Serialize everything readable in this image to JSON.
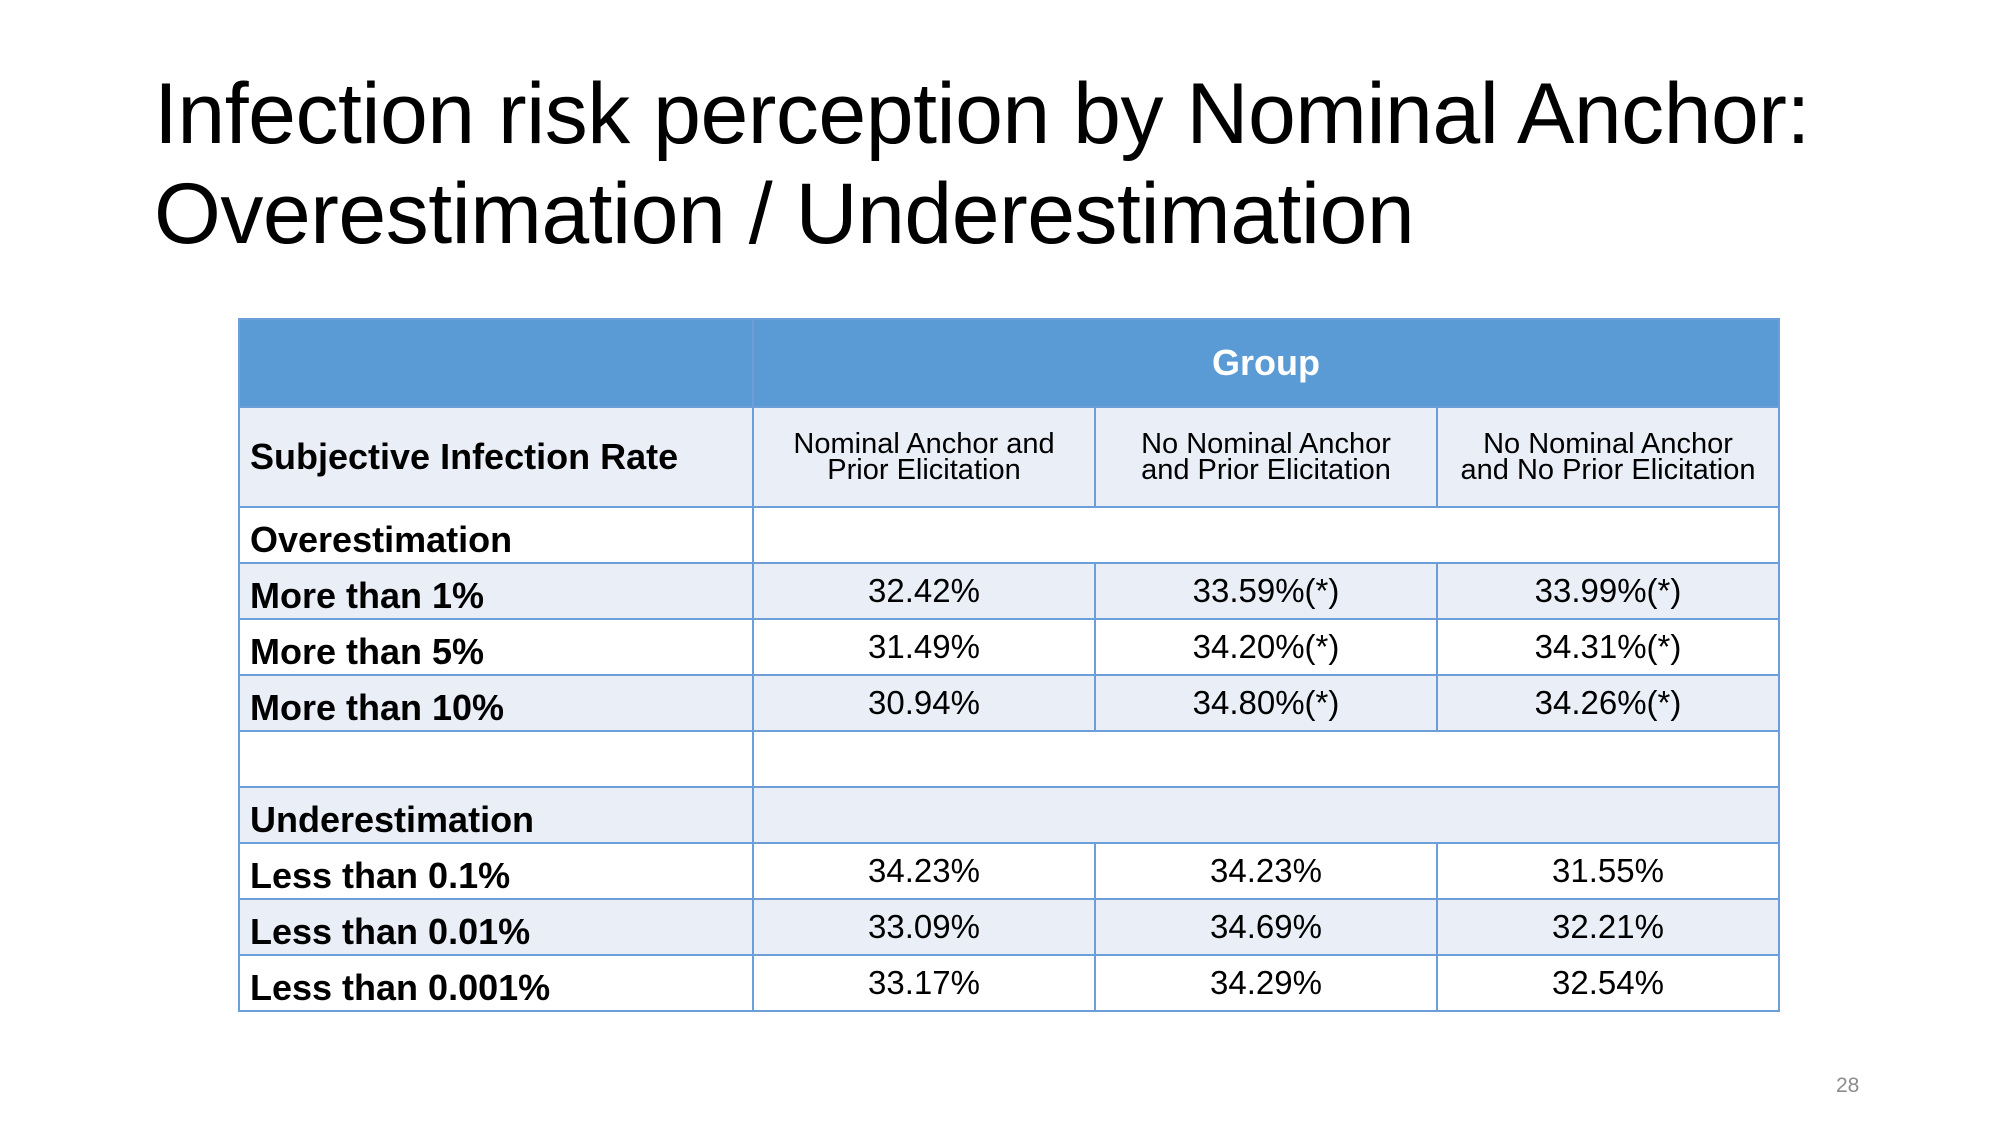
{
  "slide": {
    "title_line1": "Infection risk perception by Nominal Anchor:",
    "title_line2": "Overestimation / Underestimation",
    "page_number": "28"
  },
  "table": {
    "group_header": "Group",
    "row_header": "Subjective Infection Rate",
    "columns": [
      {
        "line1": "Nominal Anchor and",
        "line2": "Prior Elicitation"
      },
      {
        "line1": "No Nominal Anchor",
        "line2": "and Prior Elicitation"
      },
      {
        "line1": "No Nominal Anchor",
        "line2": "and No Prior Elicitation"
      }
    ],
    "rows": [
      {
        "label": "Overestimation",
        "values": [
          "",
          "",
          ""
        ]
      },
      {
        "label": "More than 1%",
        "values": [
          "32.42%",
          "33.59%(*)",
          "33.99%(*)"
        ]
      },
      {
        "label": "More than 5%",
        "values": [
          "31.49%",
          "34.20%(*)",
          "34.31%(*)"
        ]
      },
      {
        "label": "More than 10%",
        "values": [
          "30.94%",
          "34.80%(*)",
          "34.26%(*)"
        ]
      },
      {
        "label": "",
        "values": [
          "",
          "",
          ""
        ]
      },
      {
        "label": "Underestimation",
        "values": [
          "",
          "",
          ""
        ]
      },
      {
        "label": "Less than 0.1%",
        "values": [
          "34.23%",
          "34.23%",
          "31.55%"
        ]
      },
      {
        "label": "Less than 0.01%",
        "values": [
          "33.09%",
          "34.69%",
          "32.21%"
        ]
      },
      {
        "label": "Less than 0.001%",
        "values": [
          "33.17%",
          "34.29%",
          "32.54%"
        ]
      }
    ]
  },
  "colors": {
    "header_blue": "#5b9bd5",
    "row_shade": "#e9eef7",
    "border": "#6c9fd9"
  }
}
